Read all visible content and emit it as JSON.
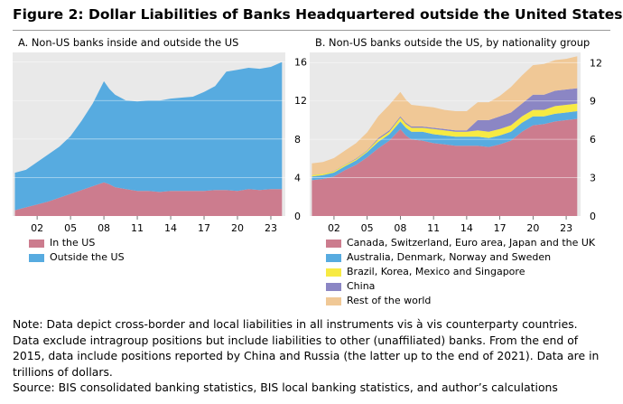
{
  "figure": {
    "title": "Figure 2: Dollar Liabilities of Banks Headquartered outside the United States"
  },
  "chart_data": [
    {
      "type": "area",
      "stacked": true,
      "title": "A. Non-US banks inside and outside the US",
      "x_tick_labels": [
        "02",
        "05",
        "08",
        "11",
        "14",
        "17",
        "20",
        "23"
      ],
      "x_ticks": [
        2002,
        2005,
        2008,
        2011,
        2014,
        2017,
        2020,
        2023
      ],
      "xlim": [
        1999.8,
        2024.3
      ],
      "ylim": [
        0,
        17
      ],
      "y_ticks": [
        0,
        4,
        8,
        12,
        16
      ],
      "y_axis_side": "right",
      "grid": "horizontal",
      "legend_position": "bottom",
      "x": [
        2000,
        2001,
        2002,
        2003,
        2004,
        2005,
        2006,
        2007,
        2008,
        2008.5,
        2009,
        2010,
        2011,
        2012,
        2013,
        2014,
        2015,
        2016,
        2017,
        2018,
        2019,
        2020,
        2021,
        2022,
        2023,
        2024
      ],
      "series": [
        {
          "name": "In the US",
          "color": "#cc7c8e",
          "values": [
            0.6,
            0.9,
            1.2,
            1.5,
            1.9,
            2.3,
            2.7,
            3.1,
            3.5,
            3.3,
            3.0,
            2.8,
            2.6,
            2.6,
            2.5,
            2.6,
            2.6,
            2.6,
            2.6,
            2.7,
            2.7,
            2.6,
            2.8,
            2.7,
            2.8,
            2.8
          ]
        },
        {
          "name": "Outside the US",
          "color": "#57abe0",
          "values": [
            3.9,
            3.9,
            4.4,
            4.9,
            5.3,
            6.0,
            7.2,
            8.6,
            10.5,
            9.9,
            9.6,
            9.2,
            9.3,
            9.4,
            9.5,
            9.6,
            9.7,
            9.8,
            10.3,
            10.8,
            12.3,
            12.6,
            12.6,
            12.6,
            12.7,
            13.2
          ]
        }
      ]
    },
    {
      "type": "area",
      "stacked": true,
      "title": "B. Non-US banks outside the US, by nationality group",
      "x_tick_labels": [
        "02",
        "05",
        "08",
        "11",
        "14",
        "17",
        "20",
        "23"
      ],
      "x_ticks": [
        2002,
        2005,
        2008,
        2011,
        2014,
        2017,
        2020,
        2023
      ],
      "xlim": [
        1999.8,
        2024.3
      ],
      "ylim": [
        0,
        12.8
      ],
      "y_ticks": [
        0,
        3,
        6,
        9,
        12
      ],
      "y_axis_side": "right",
      "grid": "horizontal",
      "legend_position": "bottom",
      "x": [
        2000,
        2001,
        2002,
        2003,
        2004,
        2005,
        2006,
        2007,
        2008,
        2008.5,
        2009,
        2010,
        2011,
        2012,
        2013,
        2014,
        2015,
        2016,
        2017,
        2018,
        2019,
        2020,
        2021,
        2022,
        2023,
        2024
      ],
      "series": [
        {
          "name": "Canada, Switzerland, Euro area, Japan and the UK",
          "color": "#cc7c8e",
          "values": [
            2.8,
            2.9,
            3.1,
            3.6,
            4.0,
            4.6,
            5.3,
            5.9,
            6.8,
            6.3,
            6.0,
            5.9,
            5.7,
            5.6,
            5.5,
            5.5,
            5.5,
            5.4,
            5.6,
            5.9,
            6.6,
            7.1,
            7.2,
            7.4,
            7.5,
            7.6
          ]
        },
        {
          "name": "Australia, Denmark, Norway and Sweden",
          "color": "#57abe0",
          "values": [
            0.3,
            0.3,
            0.3,
            0.3,
            0.35,
            0.4,
            0.5,
            0.5,
            0.6,
            0.6,
            0.6,
            0.7,
            0.7,
            0.7,
            0.7,
            0.7,
            0.7,
            0.7,
            0.7,
            0.7,
            0.7,
            0.7,
            0.6,
            0.6,
            0.6,
            0.6
          ]
        },
        {
          "name": "Brazil, Korea, Mexico and Singapore",
          "color": "#f7ea43",
          "values": [
            0.1,
            0.1,
            0.1,
            0.1,
            0.1,
            0.1,
            0.2,
            0.2,
            0.3,
            0.3,
            0.3,
            0.3,
            0.4,
            0.4,
            0.4,
            0.4,
            0.5,
            0.5,
            0.5,
            0.5,
            0.5,
            0.5,
            0.5,
            0.6,
            0.6,
            0.6
          ]
        },
        {
          "name": "China",
          "color": "#8b86c4",
          "values": [
            0.02,
            0.02,
            0.03,
            0.03,
            0.05,
            0.05,
            0.1,
            0.1,
            0.1,
            0.1,
            0.1,
            0.1,
            0.1,
            0.1,
            0.1,
            0.1,
            0.8,
            0.9,
            1.0,
            1.0,
            1.0,
            1.2,
            1.2,
            1.2,
            1.2,
            1.2
          ]
        },
        {
          "name": "Rest of the world",
          "color": "#f0c896",
          "values": [
            0.9,
            0.9,
            1.0,
            1.1,
            1.2,
            1.4,
            1.7,
            2.0,
            1.9,
            1.8,
            1.7,
            1.6,
            1.6,
            1.5,
            1.5,
            1.5,
            1.4,
            1.4,
            1.6,
            2.0,
            2.2,
            2.3,
            2.4,
            2.4,
            2.4,
            2.5
          ]
        }
      ]
    }
  ],
  "note_lines": [
    "Note: Data depict cross-border and local liabilities in all instruments vis à vis counterparty countries.",
    "Data exclude intragroup positions but include liabilities to other (unaffiliated) banks. From the end of",
    "2015, data include positions reported by China and Russia (the latter up to the end of 2021). Data are in",
    "trillions of dollars.",
    "Source: BIS consolidated banking statistics, BIS local banking statistics, and author’s calculations"
  ]
}
